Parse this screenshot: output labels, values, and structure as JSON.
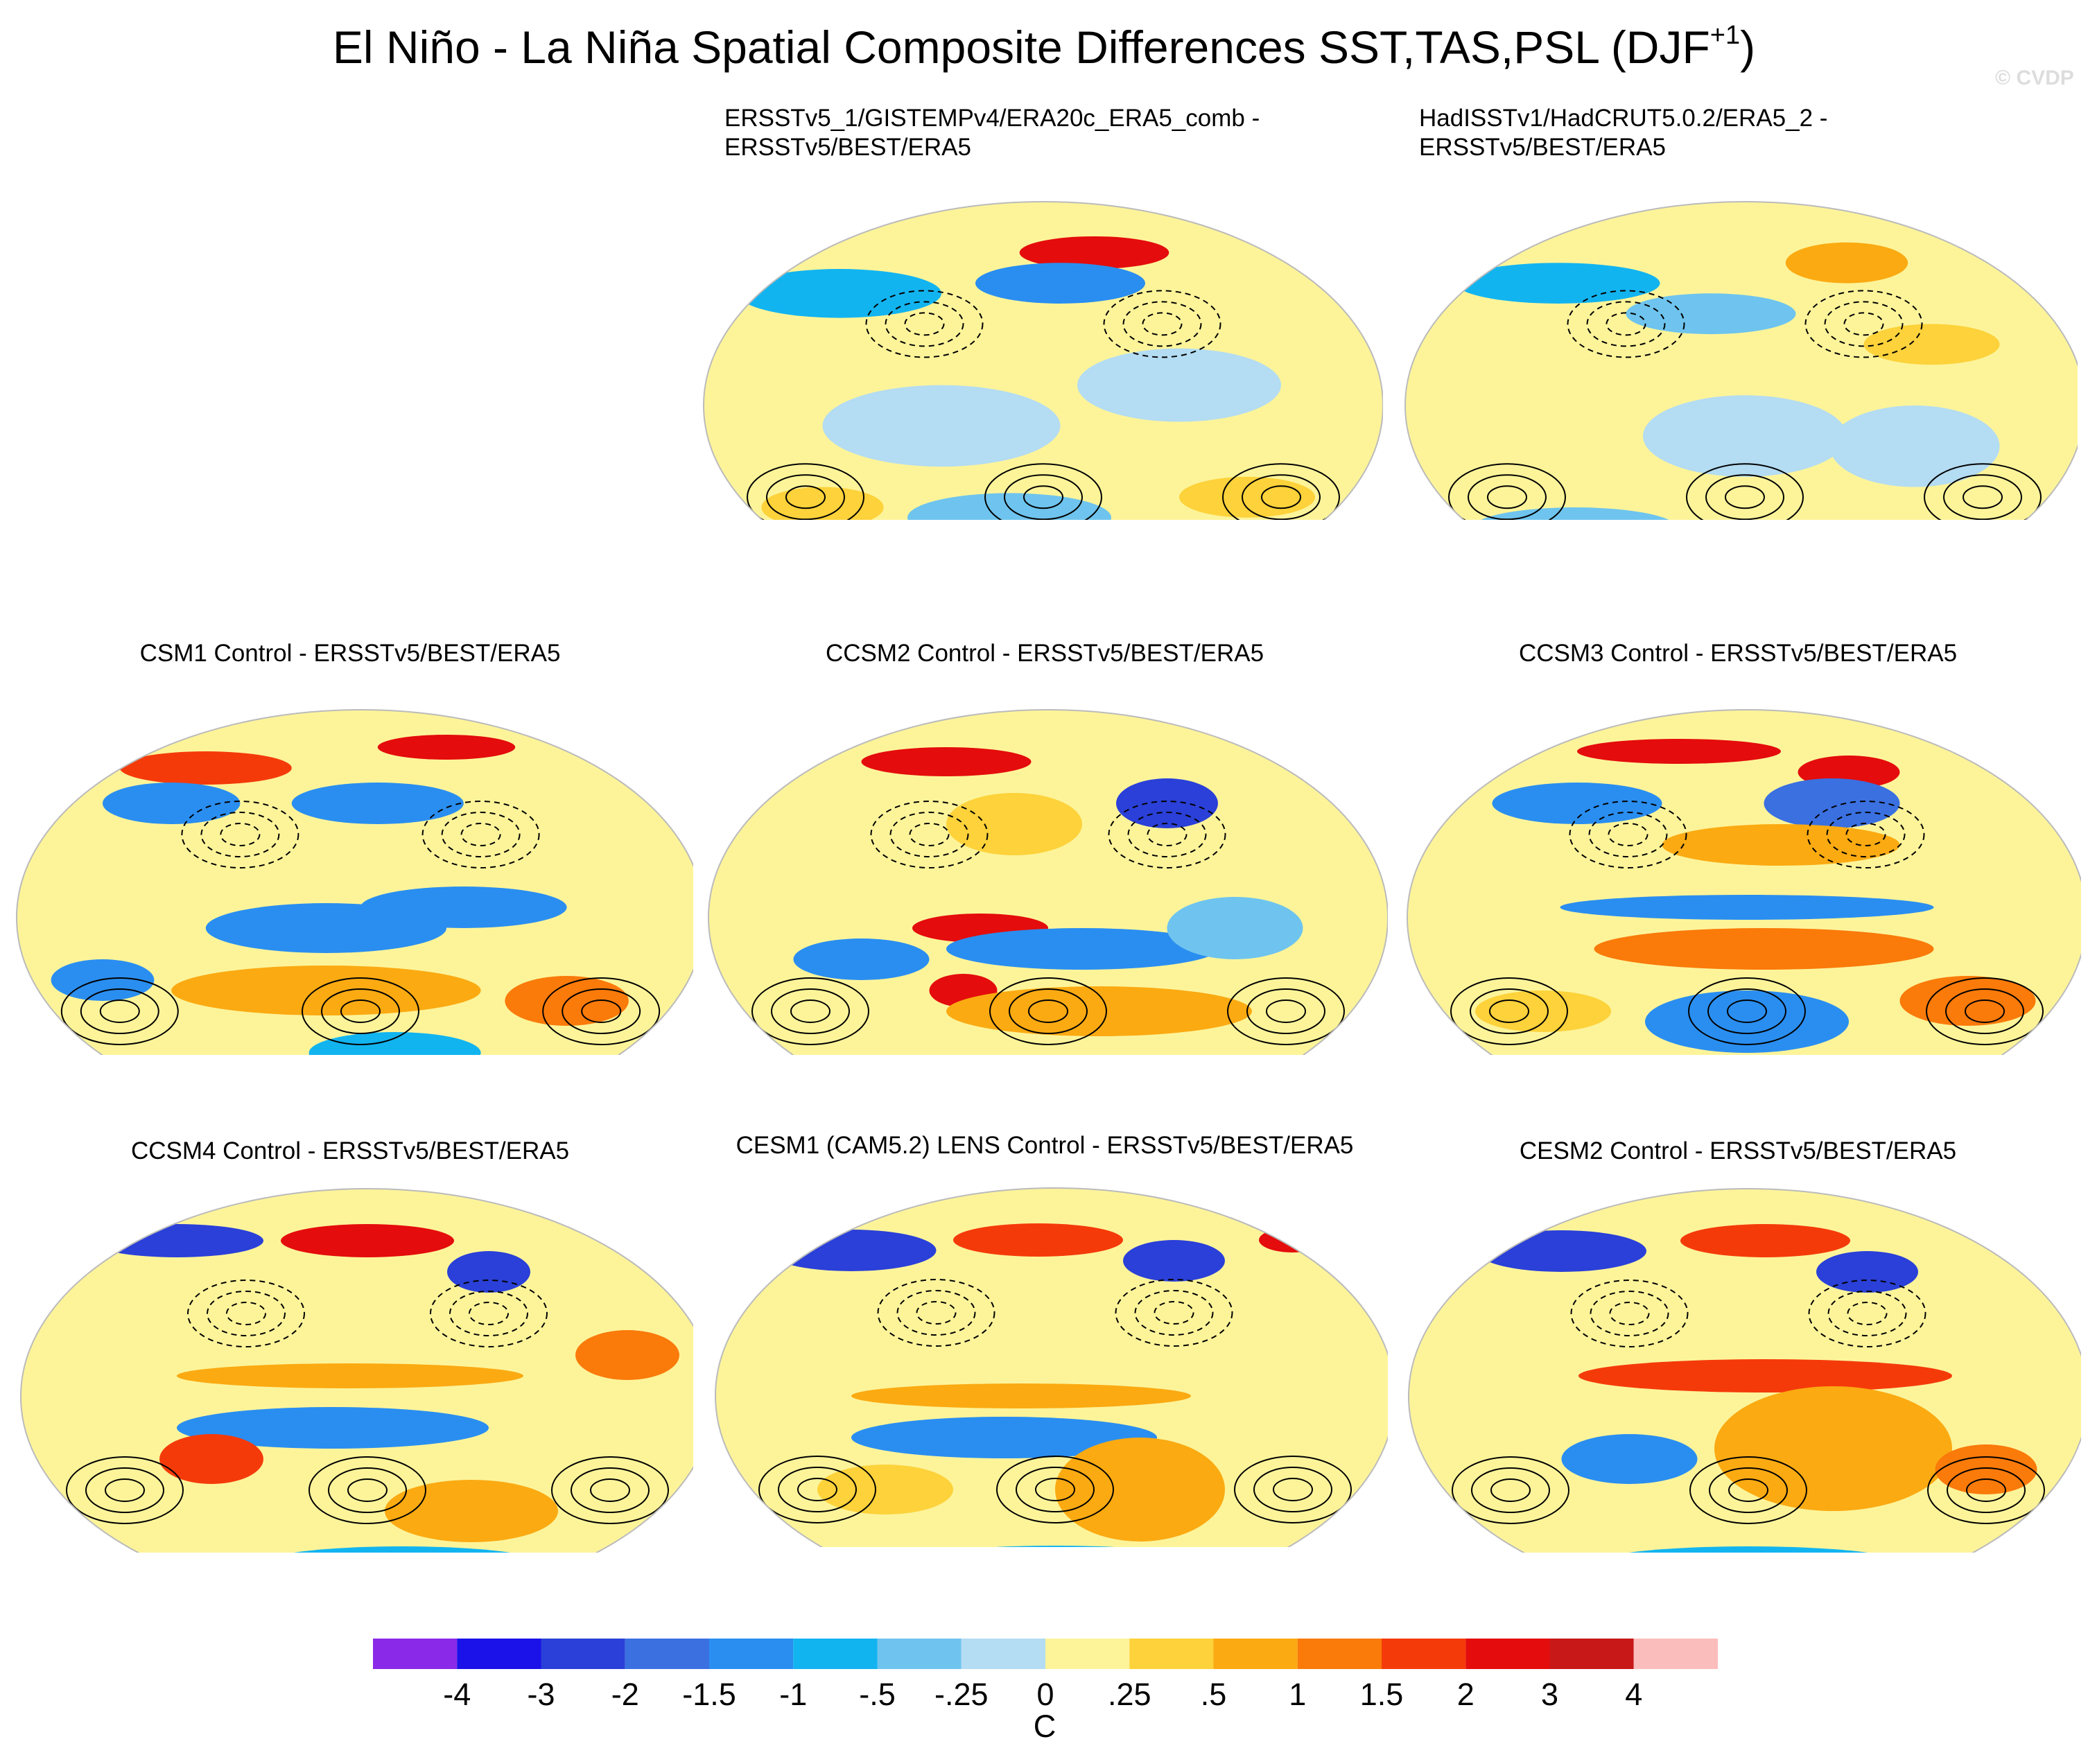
{
  "title": {
    "main": "El Niño - La Niña Spatial Composite Differences SST,TAS,PSL (DJF",
    "superscript": "+1",
    "close": ")"
  },
  "watermark": "© CVDP",
  "panels": [
    {
      "id": "p1",
      "title_lines": [
        "ERSSTv5_1/GISTEMPv4/ERA20c_ERA5_comb -",
        "ERSSTv5/BEST/ERA5"
      ],
      "title_align": "left"
    },
    {
      "id": "p2",
      "title_lines": [
        "HadISSTv1/HadCRUT5.0.2/ERA5_2 -",
        "ERSSTv5/BEST/ERA5"
      ],
      "title_align": "left"
    },
    {
      "id": "p3",
      "title_lines": [
        "CSM1 Control - ERSSTv5/BEST/ERA5"
      ],
      "title_align": "center"
    },
    {
      "id": "p4",
      "title_lines": [
        "CCSM2 Control - ERSSTv5/BEST/ERA5"
      ],
      "title_align": "center"
    },
    {
      "id": "p5",
      "title_lines": [
        "CCSM3 Control - ERSSTv5/BEST/ERA5"
      ],
      "title_align": "center"
    },
    {
      "id": "p6",
      "title_lines": [
        "CCSM4 Control - ERSSTv5/BEST/ERA5"
      ],
      "title_align": "center"
    },
    {
      "id": "p7",
      "title_lines": [
        "CESM1 (CAM5.2) LENS Control - ERSSTv5/BEST/ERA5"
      ],
      "title_align": "center"
    },
    {
      "id": "p8",
      "title_lines": [
        "CESM2 Control - ERSSTv5/BEST/ERA5"
      ],
      "title_align": "center"
    }
  ],
  "colorbar": {
    "unit": "C",
    "tick_labels": [
      "-4",
      "-3",
      "-2",
      "-1.5",
      "-1",
      "-.5",
      "-.25",
      "0",
      ".25",
      ".5",
      "1",
      "1.5",
      "2",
      "3",
      "4"
    ],
    "colors": [
      "#8a2ae8",
      "#1a12e8",
      "#2a40d8",
      "#3a70e0",
      "#2a8ef0",
      "#12b4f0",
      "#6ec4ee",
      "#b4dcf2",
      "#fdf49a",
      "#fdd23a",
      "#fbaa12",
      "#fa7a0a",
      "#f53a0a",
      "#e40c0c",
      "#c81818",
      "#fbbcbc"
    ]
  }
}
